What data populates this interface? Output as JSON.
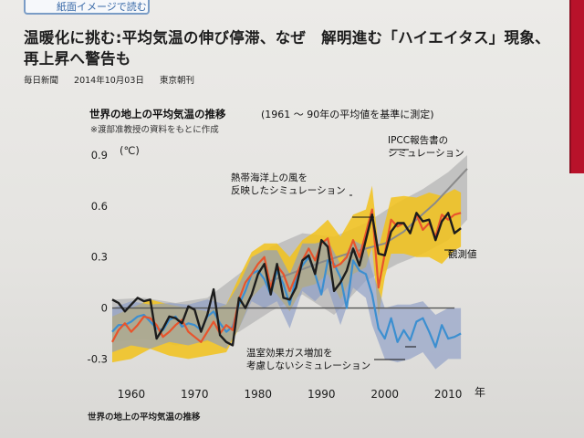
{
  "header": {
    "button_label": "紙面イメージで読む",
    "headline": "温暖化に挑む:平均気温の伸び停滞、なぜ　解明進む「ハイエイタス」現象、再上昇へ警告も",
    "source": "毎日新聞",
    "date": "2014年10月03日",
    "edition": "東京朝刊"
  },
  "caption": "世界の地上の平均気温の推移",
  "colors": {
    "observed": "#1c1c1c",
    "sim_ocean": "#e8542c",
    "sim_ocean_band": "#f2c21a",
    "sim_no_ghg": "#3c8fd0",
    "sim_no_ghg_band": "#8c9cc6",
    "ipcc": "#8a8a8a",
    "ipcc_band": "#b5b5b5",
    "zero_line": "#555555"
  },
  "chart_data": {
    "type": "line",
    "title": "世界の地上の平均気温の推移",
    "subtitle": "(1961 ～ 90年の平均値を基準に測定)",
    "note": "※渡部准教授の資料をもとに作成",
    "y_unit": "(℃)",
    "x_unit": "年",
    "xlim": [
      1957,
      2013
    ],
    "ylim": [
      -0.33,
      0.9
    ],
    "y_ticks": [
      {
        "value": 0.9,
        "label": "0.9"
      },
      {
        "value": 0.6,
        "label": "0.6"
      },
      {
        "value": 0.3,
        "label": "0.3"
      },
      {
        "value": 0,
        "label": "0"
      },
      {
        "value": -0.3,
        "label": "-0.3"
      }
    ],
    "x_ticks": [
      {
        "value": 1960,
        "label": "1960"
      },
      {
        "value": 1970,
        "label": "1970"
      },
      {
        "value": 1980,
        "label": "1980"
      },
      {
        "value": 1990,
        "label": "1990"
      },
      {
        "value": 2000,
        "label": "2000"
      },
      {
        "value": 2010,
        "label": "2010"
      }
    ],
    "annotations": [
      {
        "key": "ipcc",
        "lines": [
          "IPCC報告書の",
          "シミュレーション"
        ]
      },
      {
        "key": "ocean",
        "lines": [
          "熱帯海洋上の風を",
          "反映したシミュレーション"
        ]
      },
      {
        "key": "observed",
        "lines": [
          "観測値"
        ]
      },
      {
        "key": "noghg",
        "lines": [
          "温室効果ガス増加を",
          "考慮しないシミュレーション"
        ]
      }
    ],
    "series": [
      {
        "key": "observed",
        "x": [
          1957,
          1958,
          1959,
          1960,
          1961,
          1962,
          1963,
          1964,
          1965,
          1966,
          1967,
          1968,
          1969,
          1970,
          1971,
          1972,
          1973,
          1974,
          1975,
          1976,
          1977,
          1978,
          1979,
          1980,
          1981,
          1982,
          1983,
          1984,
          1985,
          1986,
          1987,
          1988,
          1989,
          1990,
          1991,
          1992,
          1993,
          1994,
          1995,
          1996,
          1997,
          1998,
          1999,
          2000,
          2001,
          2002,
          2003,
          2004,
          2005,
          2006,
          2007,
          2008,
          2009,
          2010,
          2011,
          2012
        ],
        "y": [
          0.05,
          0.03,
          -0.02,
          0.02,
          0.06,
          0.04,
          0.05,
          -0.18,
          -0.12,
          -0.05,
          -0.06,
          -0.09,
          0.01,
          -0.01,
          -0.14,
          -0.04,
          0.11,
          -0.16,
          -0.2,
          -0.22,
          0.06,
          0.0,
          0.08,
          0.2,
          0.26,
          0.08,
          0.26,
          0.06,
          0.05,
          0.12,
          0.28,
          0.31,
          0.2,
          0.4,
          0.36,
          0.1,
          0.15,
          0.22,
          0.35,
          0.25,
          0.4,
          0.55,
          0.32,
          0.31,
          0.45,
          0.5,
          0.5,
          0.44,
          0.56,
          0.51,
          0.52,
          0.4,
          0.51,
          0.56,
          0.44,
          0.47
        ]
      },
      {
        "key": "sim_ocean",
        "x": [
          1957,
          1958,
          1959,
          1960,
          1961,
          1962,
          1963,
          1964,
          1965,
          1966,
          1967,
          1968,
          1969,
          1970,
          1971,
          1972,
          1973,
          1974,
          1975,
          1976,
          1977,
          1978,
          1979,
          1980,
          1981,
          1982,
          1983,
          1984,
          1985,
          1986,
          1987,
          1988,
          1989,
          1990,
          1991,
          1992,
          1993,
          1994,
          1995,
          1996,
          1997,
          1998,
          1999,
          2000,
          2001,
          2002,
          2003,
          2004,
          2005,
          2006,
          2007,
          2008,
          2009,
          2010,
          2011,
          2012
        ],
        "y": [
          -0.2,
          -0.13,
          -0.09,
          -0.14,
          -0.1,
          -0.05,
          -0.06,
          -0.1,
          -0.17,
          -0.14,
          -0.1,
          -0.07,
          -0.14,
          -0.17,
          -0.2,
          -0.14,
          -0.08,
          -0.15,
          -0.1,
          -0.13,
          0.05,
          0.15,
          0.2,
          0.26,
          0.3,
          0.12,
          0.25,
          0.2,
          0.1,
          0.19,
          0.28,
          0.35,
          0.28,
          0.38,
          0.41,
          0.24,
          0.26,
          0.3,
          0.4,
          0.3,
          0.44,
          0.58,
          0.12,
          0.32,
          0.52,
          0.48,
          0.5,
          0.44,
          0.55,
          0.46,
          0.5,
          0.42,
          0.55,
          0.52,
          0.55,
          0.56
        ]
      },
      {
        "key": "sim_no_ghg",
        "x": [
          1957,
          1958,
          1959,
          1960,
          1961,
          1962,
          1963,
          1964,
          1965,
          1966,
          1967,
          1968,
          1969,
          1970,
          1971,
          1972,
          1973,
          1974,
          1975,
          1976,
          1977,
          1978,
          1979,
          1980,
          1981,
          1982,
          1983,
          1984,
          1985,
          1986,
          1987,
          1988,
          1989,
          1990,
          1991,
          1992,
          1993,
          1994,
          1995,
          1996,
          1997,
          1998,
          1999,
          2000,
          2001,
          2002,
          2003,
          2004,
          2005,
          2006,
          2007,
          2008,
          2009,
          2010,
          2011,
          2012
        ],
        "y": [
          -0.14,
          -0.1,
          -0.1,
          -0.08,
          -0.05,
          -0.04,
          -0.08,
          -0.12,
          -0.13,
          -0.07,
          -0.05,
          -0.11,
          -0.09,
          -0.1,
          -0.13,
          -0.05,
          -0.02,
          -0.09,
          -0.14,
          -0.11,
          0.02,
          0.1,
          0.2,
          0.22,
          0.17,
          0.08,
          0.22,
          0.14,
          0.02,
          0.18,
          0.25,
          0.3,
          0.2,
          0.08,
          0.28,
          0.26,
          0.18,
          0.0,
          0.28,
          0.22,
          0.2,
          0.08,
          -0.12,
          -0.18,
          -0.06,
          -0.2,
          -0.13,
          -0.19,
          -0.08,
          -0.06,
          -0.14,
          -0.23,
          -0.1,
          -0.18,
          -0.17,
          -0.15
        ]
      },
      {
        "key": "ipcc",
        "x": [
          1982,
          1985,
          1990,
          1995,
          2000,
          2003,
          2005,
          2008,
          2010,
          2013
        ],
        "y": [
          0.16,
          0.2,
          0.27,
          0.33,
          0.38,
          0.45,
          0.52,
          0.62,
          0.7,
          0.82
        ]
      }
    ],
    "bands": [
      {
        "key": "sim_ocean_band",
        "x": [
          1957,
          1960,
          1963,
          1966,
          1969,
          1972,
          1975,
          1977,
          1979,
          1981,
          1983,
          1985,
          1987,
          1989,
          1991,
          1993,
          1995,
          1997,
          1998,
          1999,
          2000,
          2001,
          2003,
          2005,
          2007,
          2009,
          2011,
          2012
        ],
        "upper": [
          -0.05,
          0.0,
          0.05,
          0.02,
          0.0,
          -0.02,
          0.02,
          0.18,
          0.33,
          0.38,
          0.38,
          0.3,
          0.4,
          0.45,
          0.52,
          0.42,
          0.55,
          0.58,
          0.72,
          0.35,
          0.5,
          0.65,
          0.66,
          0.65,
          0.68,
          0.66,
          0.7,
          0.68
        ],
        "lower": [
          -0.32,
          -0.3,
          -0.24,
          -0.28,
          -0.3,
          -0.28,
          -0.26,
          -0.12,
          0.06,
          0.14,
          0.08,
          -0.02,
          0.12,
          0.14,
          0.2,
          0.05,
          0.2,
          0.24,
          0.36,
          -0.05,
          0.18,
          0.32,
          0.32,
          0.3,
          0.3,
          0.26,
          0.34,
          0.36
        ]
      },
      {
        "key": "sim_no_ghg_band",
        "x": [
          1957,
          1960,
          1963,
          1966,
          1969,
          1972,
          1975,
          1977,
          1979,
          1981,
          1983,
          1985,
          1987,
          1989,
          1991,
          1993,
          1995,
          1997,
          1998,
          2000,
          2002,
          2004,
          2006,
          2008,
          2010,
          2012
        ],
        "upper": [
          0.0,
          0.04,
          0.02,
          0.03,
          0.02,
          0.05,
          0.02,
          0.14,
          0.3,
          0.34,
          0.34,
          0.2,
          0.38,
          0.38,
          0.4,
          0.26,
          0.4,
          0.36,
          0.22,
          0.0,
          0.02,
          0.02,
          0.04,
          -0.04,
          0.0,
          0.0
        ],
        "lower": [
          -0.26,
          -0.22,
          -0.24,
          -0.2,
          -0.22,
          -0.19,
          -0.24,
          -0.12,
          0.04,
          0.0,
          0.04,
          -0.12,
          0.1,
          0.04,
          0.12,
          -0.1,
          0.12,
          0.06,
          -0.1,
          -0.3,
          -0.32,
          -0.3,
          -0.26,
          -0.36,
          -0.3,
          -0.3
        ]
      },
      {
        "key": "ipcc_band",
        "x": [
          1957,
          1962,
          1967,
          1972,
          1977,
          1982,
          1987,
          1992,
          1997,
          2002,
          2006,
          2010,
          2013
        ],
        "upper": [
          0.05,
          0.06,
          0.03,
          0.06,
          0.2,
          0.36,
          0.44,
          0.42,
          0.5,
          0.62,
          0.7,
          0.8,
          0.9
        ],
        "lower": [
          -0.2,
          -0.18,
          -0.22,
          -0.2,
          -0.14,
          -0.02,
          0.08,
          -0.04,
          0.16,
          0.26,
          0.32,
          0.4,
          0.52
        ]
      }
    ]
  }
}
